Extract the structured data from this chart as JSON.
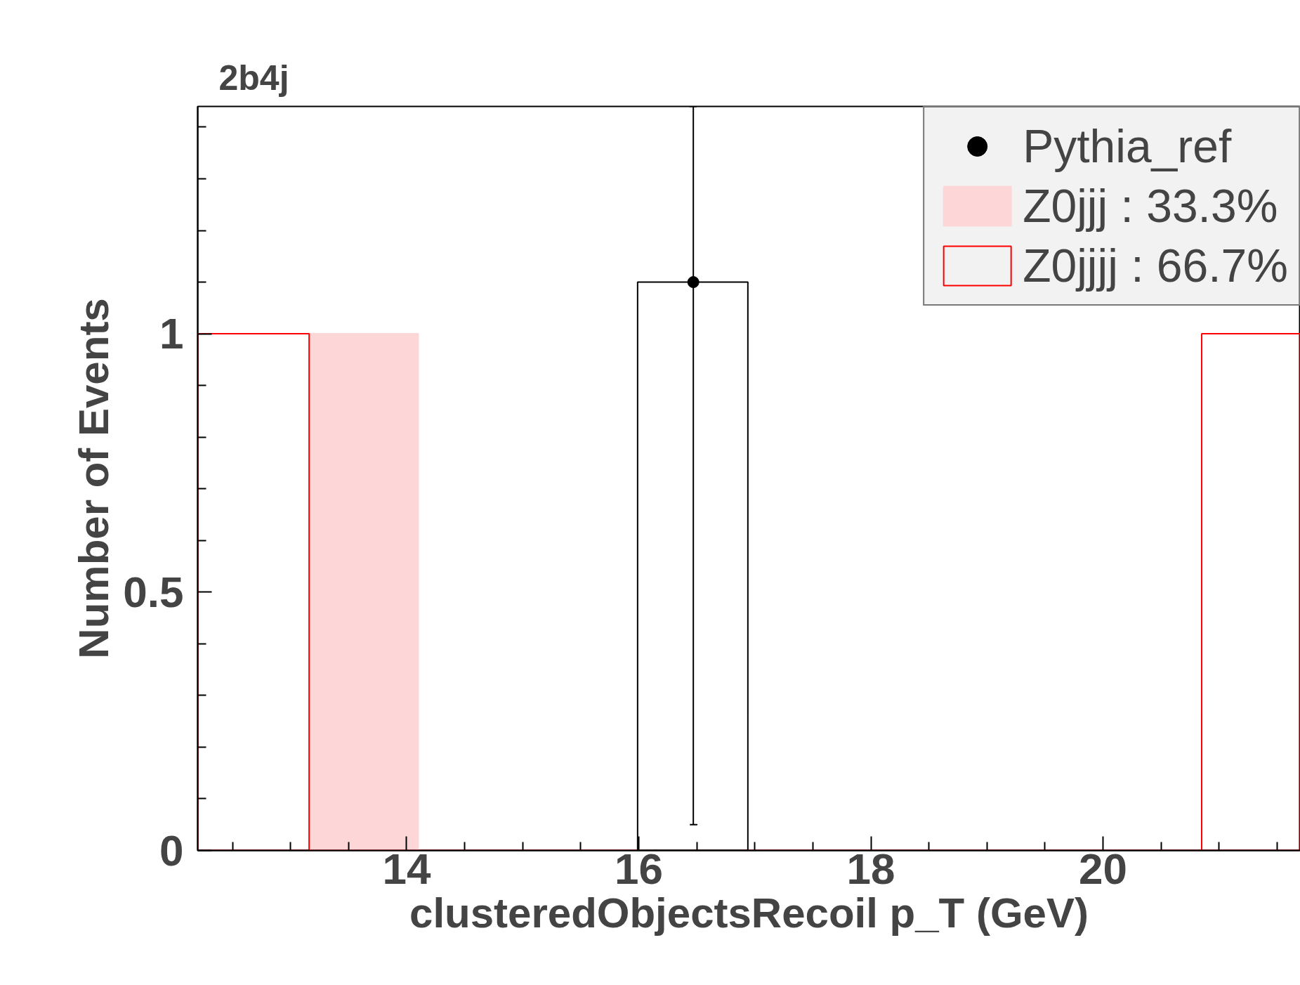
{
  "chart_data": {
    "type": "histogram",
    "title": "2b4j",
    "xlabel": "clusteredObjectsRecoil p_T (GeV)",
    "ylabel": "Number of Events",
    "xlim": [
      12.2,
      21.7
    ],
    "ylim": [
      0,
      1.44
    ],
    "xticks": [
      {
        "value": 12.5,
        "label": null
      },
      {
        "value": 13,
        "label": null
      },
      {
        "value": 13.5,
        "label": null
      },
      14,
      {
        "value": 14.5,
        "label": null
      },
      {
        "value": 15,
        "label": null
      },
      {
        "value": 15.5,
        "label": null
      },
      16,
      {
        "value": 16.5,
        "label": null
      },
      {
        "value": 17,
        "label": null
      },
      {
        "value": 17.5,
        "label": null
      },
      18,
      {
        "value": 18.5,
        "label": null
      },
      {
        "value": 19,
        "label": null
      },
      {
        "value": 19.5,
        "label": null
      },
      20,
      {
        "value": 20.5,
        "label": null
      },
      {
        "value": 21,
        "label": null
      },
      {
        "value": 21.5,
        "label": null
      }
    ],
    "yticks": [
      0,
      {
        "value": 0.1,
        "label": null
      },
      {
        "value": 0.2,
        "label": null
      },
      {
        "value": 0.3,
        "label": null
      },
      {
        "value": 0.4,
        "label": null
      },
      0.5,
      {
        "value": 0.6,
        "label": null
      },
      {
        "value": 0.7,
        "label": null
      },
      {
        "value": 0.8,
        "label": null
      },
      {
        "value": 0.9,
        "label": null
      },
      1,
      {
        "value": 1.1,
        "label": null
      },
      {
        "value": 1.2,
        "label": null
      },
      {
        "value": 1.3,
        "label": null
      },
      {
        "value": 1.4,
        "label": null
      }
    ],
    "series": [
      {
        "name": "Z0jjj : 33.3%",
        "color": "#fdd7d7",
        "bins": [
          13.16,
          14.1
        ],
        "values": [
          1
        ]
      },
      {
        "name": "Z0jjjj : 66.7%",
        "color": "#ff0000",
        "bins": [
          12.2,
          13.16,
          20.85,
          21.7
        ],
        "values": [
          1,
          0,
          1
        ]
      },
      {
        "color": "#000000",
        "bins": [
          15.99,
          16.94
        ],
        "values": [
          1.1
        ]
      },
      {
        "name": "Pythia_ref",
        "type": "scatter",
        "color": "#000000",
        "x": [
          16.47
        ],
        "values": [
          1.1
        ],
        "errors": [
          [
            0.05,
            1.44
          ]
        ],
        "marker": "circle"
      }
    ],
    "legend": "top right"
  }
}
